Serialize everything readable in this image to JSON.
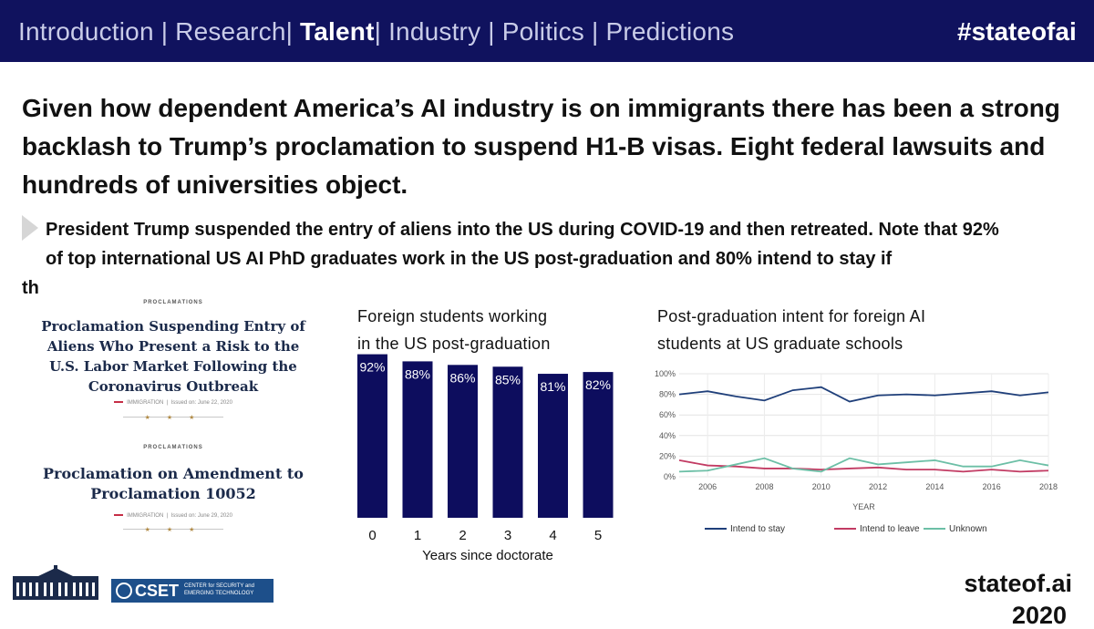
{
  "nav": {
    "introduction": "Introduction",
    "research": "Research",
    "talent": "Talent",
    "industry": "Industry",
    "politics": "Politics",
    "predictions": "Predictions",
    "hashtag": "#stateofai"
  },
  "headline": "Given how dependent America’s AI industry is on immigrants there has been a strong backlash to Trump’s proclamation to suspend H1-B visas. Eight federal lawsuits and hundreds of universities object.",
  "bullet": {
    "line1": "President Trump suspended the entry of aliens into the US during COVID-19 and then retreated. Note that 92%",
    "line2": "of top international US AI PhD graduates work in the US post-graduation and 80% intend to stay if",
    "line3": "th"
  },
  "proclamation1": {
    "label": "PROCLAMATIONS",
    "title_l1": "Proclamation Suspending Entry of",
    "title_l2": "Aliens Who Present a Risk to the",
    "title_l3": "U.S. Labor Market Following the",
    "title_l4": "Coronavirus Outbreak",
    "category": "IMMIGRATION",
    "issued": "Issued on: June 22, 2020"
  },
  "proclamation2": {
    "label": "PROCLAMATIONS",
    "title_l1": "Proclamation on Amendment to",
    "title_l2": "Proclamation 10052",
    "category": "IMMIGRATION",
    "issued": "Issued on: June 29, 2020"
  },
  "footer": {
    "site": "stateof.ai",
    "year": "2020",
    "cset_word": "CSET",
    "cset_sub_l1": "CENTER for SECURITY and",
    "cset_sub_l2": "EMERGING TECHNOLOGY"
  },
  "chart_data": [
    {
      "type": "bar",
      "title_l1": "Foreign students working",
      "title_l2": "in the US post-graduation",
      "xlabel": "Years since doctorate",
      "categories": [
        "0",
        "1",
        "2",
        "3",
        "4",
        "5"
      ],
      "values": [
        92,
        88,
        86,
        85,
        81,
        82
      ],
      "labels": [
        "92%",
        "88%",
        "86%",
        "85%",
        "81%",
        "82%"
      ],
      "ylim": [
        0,
        100
      ],
      "color": "#0d0d5e"
    },
    {
      "type": "line",
      "title_l1": "Post-graduation intent for foreign AI",
      "title_l2": "students at US graduate schools",
      "xlabel": "YEAR",
      "x": [
        2005,
        2006,
        2007,
        2008,
        2009,
        2010,
        2011,
        2012,
        2013,
        2014,
        2015,
        2016,
        2017,
        2018
      ],
      "xticks": [
        "2006",
        "2008",
        "2010",
        "2012",
        "2014",
        "2016",
        "2018"
      ],
      "yticks": [
        "0%",
        "20%",
        "40%",
        "60%",
        "80%",
        "100%"
      ],
      "ylim": [
        0,
        100
      ],
      "series": [
        {
          "name": "Intend to stay",
          "color": "#1f3f7a",
          "values": [
            80,
            83,
            78,
            74,
            84,
            87,
            73,
            79,
            80,
            79,
            81,
            83,
            79,
            82
          ]
        },
        {
          "name": "Intend to leave",
          "color": "#c23b63",
          "values": [
            16,
            11,
            10,
            8,
            8,
            7,
            8,
            9,
            7,
            7,
            5,
            7,
            5,
            6
          ]
        },
        {
          "name": "Unknown",
          "color": "#6cbfa6",
          "values": [
            5,
            6,
            12,
            18,
            8,
            5,
            18,
            12,
            14,
            16,
            10,
            10,
            16,
            11
          ]
        }
      ]
    }
  ]
}
